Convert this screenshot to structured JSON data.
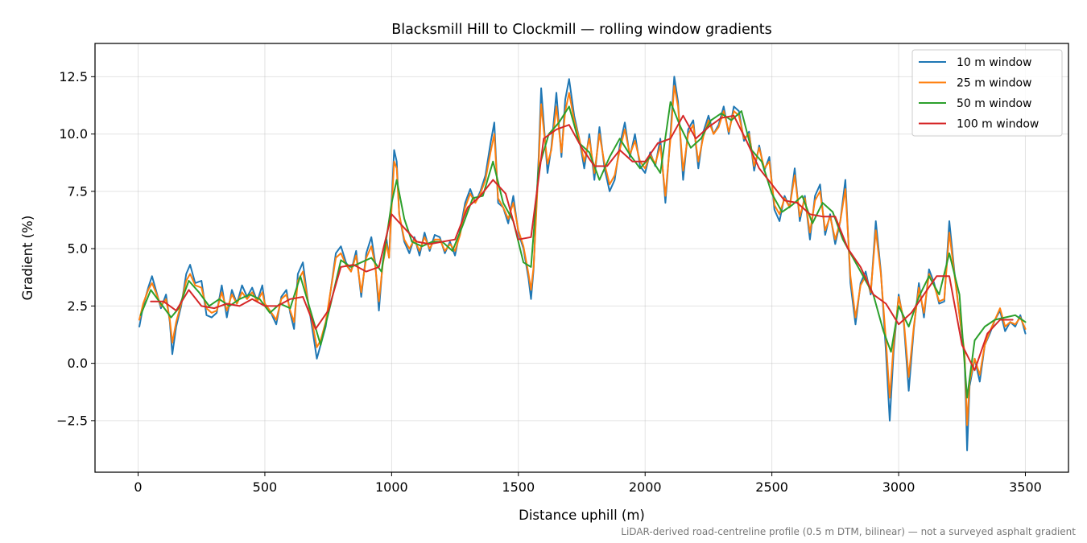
{
  "chart_data": {
    "type": "line",
    "title": "Blacksmill Hill to Clockmill — rolling window gradients",
    "xlabel": "Distance uphill (m)",
    "ylabel": "Gradient (%)",
    "footnote": "LiDAR-derived road-centreline profile (0.5 m DTM, bilinear) — not a surveyed asphalt gradient",
    "xlim": [
      -170,
      3670
    ],
    "ylim": [
      -4.75,
      13.95
    ],
    "xticks": [
      0,
      500,
      1000,
      1500,
      2000,
      2500,
      3000,
      3500
    ],
    "xtick_labels": [
      "0",
      "500",
      "1000",
      "1500",
      "2000",
      "2500",
      "3000",
      "3500"
    ],
    "yticks": [
      -2.5,
      0.0,
      2.5,
      5.0,
      7.5,
      10.0,
      12.5
    ],
    "ytick_labels": [
      "−2.5",
      "0.0",
      "2.5",
      "5.0",
      "7.5",
      "10.0",
      "12.5"
    ],
    "grid": true,
    "legend_position": "top-right",
    "series": [
      {
        "name": "10 m window",
        "color": "#1f77b4",
        "x": [
          5,
          20,
          40,
          55,
          70,
          90,
          110,
          125,
          135,
          150,
          170,
          190,
          205,
          225,
          250,
          270,
          290,
          310,
          330,
          350,
          370,
          390,
          410,
          430,
          450,
          470,
          490,
          500,
          520,
          545,
          565,
          585,
          600,
          615,
          630,
          650,
          670,
          690,
          705,
          720,
          740,
          760,
          780,
          800,
          820,
          840,
          860,
          880,
          900,
          920,
          935,
          950,
          965,
          980,
          990,
          1000,
          1010,
          1020,
          1030,
          1050,
          1070,
          1090,
          1110,
          1130,
          1150,
          1170,
          1190,
          1210,
          1230,
          1250,
          1270,
          1290,
          1310,
          1330,
          1350,
          1370,
          1390,
          1405,
          1420,
          1440,
          1460,
          1480,
          1500,
          1520,
          1540,
          1550,
          1560,
          1570,
          1580,
          1590,
          1600,
          1615,
          1630,
          1650,
          1670,
          1685,
          1700,
          1720,
          1740,
          1760,
          1780,
          1800,
          1820,
          1840,
          1860,
          1880,
          1900,
          1920,
          1940,
          1960,
          1980,
          2000,
          2020,
          2040,
          2060,
          2080,
          2100,
          2115,
          2130,
          2150,
          2170,
          2190,
          2210,
          2230,
          2250,
          2270,
          2290,
          2310,
          2330,
          2350,
          2370,
          2390,
          2410,
          2430,
          2450,
          2470,
          2490,
          2510,
          2530,
          2550,
          2570,
          2590,
          2610,
          2630,
          2650,
          2670,
          2690,
          2710,
          2730,
          2750,
          2770,
          2790,
          2810,
          2830,
          2850,
          2870,
          2890,
          2910,
          2930,
          2950,
          2965,
          2980,
          3000,
          3020,
          3040,
          3060,
          3080,
          3100,
          3120,
          3140,
          3160,
          3180,
          3200,
          3220,
          3240,
          3260,
          3270,
          3280,
          3300,
          3320,
          3340,
          3360,
          3380,
          3400,
          3420,
          3440,
          3460,
          3480,
          3500
        ],
        "y": [
          1.6,
          2.5,
          3.3,
          3.8,
          3.2,
          2.4,
          3.0,
          1.8,
          0.4,
          1.6,
          2.5,
          3.9,
          4.3,
          3.5,
          3.6,
          2.1,
          2.0,
          2.2,
          3.4,
          2.0,
          3.2,
          2.6,
          3.4,
          2.9,
          3.3,
          2.7,
          3.4,
          2.6,
          2.3,
          1.7,
          2.9,
          3.2,
          2.2,
          1.5,
          3.9,
          4.4,
          2.7,
          1.3,
          0.2,
          0.8,
          1.6,
          3.2,
          4.8,
          5.1,
          4.4,
          4.0,
          4.9,
          2.9,
          4.8,
          5.5,
          4.4,
          2.3,
          4.4,
          5.4,
          4.6,
          7.1,
          9.3,
          8.8,
          6.5,
          5.3,
          4.8,
          5.5,
          4.7,
          5.7,
          4.9,
          5.6,
          5.5,
          4.8,
          5.3,
          4.7,
          5.8,
          7.0,
          7.6,
          7.0,
          7.5,
          8.2,
          9.6,
          10.5,
          7.0,
          6.8,
          6.1,
          7.3,
          5.7,
          5.0,
          3.7,
          2.8,
          4.1,
          6.6,
          9.0,
          12.0,
          10.5,
          8.3,
          9.4,
          11.8,
          9.0,
          11.5,
          12.4,
          10.8,
          9.8,
          8.5,
          10.0,
          8.0,
          10.3,
          8.5,
          7.5,
          8.0,
          9.5,
          10.5,
          9.0,
          10.0,
          8.6,
          8.3,
          9.2,
          8.6,
          9.8,
          7.0,
          10.0,
          12.5,
          11.4,
          8.0,
          10.2,
          10.6,
          8.5,
          10.1,
          10.8,
          10.0,
          10.4,
          11.2,
          10.0,
          11.2,
          11.0,
          9.7,
          10.1,
          8.4,
          9.5,
          8.4,
          9.0,
          6.7,
          6.2,
          7.3,
          6.8,
          8.5,
          6.2,
          7.3,
          5.4,
          7.3,
          7.8,
          5.6,
          6.5,
          5.2,
          6.2,
          8.0,
          3.5,
          1.7,
          3.5,
          4.0,
          3.0,
          6.2,
          4.0,
          0.5,
          -2.5,
          0.5,
          3.0,
          1.8,
          -1.2,
          1.5,
          3.5,
          2.0,
          4.1,
          3.5,
          2.6,
          2.7,
          6.2,
          4.0,
          2.1,
          0.3,
          -3.8,
          -1.0,
          0.2,
          -0.8,
          0.8,
          1.3,
          1.9,
          2.3,
          1.4,
          1.8,
          1.6,
          2.1,
          1.3
        ]
      },
      {
        "name": "25 m window",
        "color": "#ff7f0e",
        "x": [
          5,
          20,
          40,
          55,
          70,
          90,
          110,
          125,
          135,
          150,
          170,
          190,
          205,
          225,
          250,
          270,
          290,
          310,
          330,
          350,
          370,
          390,
          410,
          430,
          450,
          470,
          490,
          500,
          520,
          545,
          565,
          585,
          600,
          615,
          630,
          650,
          670,
          690,
          705,
          720,
          740,
          760,
          780,
          800,
          820,
          840,
          860,
          880,
          900,
          920,
          935,
          950,
          965,
          980,
          990,
          1000,
          1010,
          1020,
          1030,
          1050,
          1070,
          1090,
          1110,
          1130,
          1150,
          1170,
          1190,
          1210,
          1230,
          1250,
          1270,
          1290,
          1310,
          1330,
          1350,
          1370,
          1390,
          1405,
          1420,
          1440,
          1460,
          1480,
          1500,
          1520,
          1540,
          1550,
          1560,
          1570,
          1580,
          1590,
          1600,
          1615,
          1630,
          1650,
          1670,
          1685,
          1700,
          1720,
          1740,
          1760,
          1780,
          1800,
          1820,
          1840,
          1860,
          1880,
          1900,
          1920,
          1940,
          1960,
          1980,
          2000,
          2020,
          2040,
          2060,
          2080,
          2100,
          2115,
          2130,
          2150,
          2170,
          2190,
          2210,
          2230,
          2250,
          2270,
          2290,
          2310,
          2330,
          2350,
          2370,
          2390,
          2410,
          2430,
          2450,
          2470,
          2490,
          2510,
          2530,
          2550,
          2570,
          2590,
          2610,
          2630,
          2650,
          2670,
          2690,
          2710,
          2730,
          2750,
          2770,
          2790,
          2810,
          2830,
          2850,
          2870,
          2890,
          2910,
          2930,
          2950,
          2965,
          2980,
          3000,
          3020,
          3040,
          3060,
          3080,
          3100,
          3120,
          3140,
          3160,
          3180,
          3200,
          3220,
          3240,
          3260,
          3270,
          3280,
          3300,
          3320,
          3340,
          3360,
          3380,
          3400,
          3420,
          3440,
          3460,
          3480,
          3500
        ],
        "y": [
          1.9,
          2.6,
          3.2,
          3.5,
          3.1,
          2.5,
          2.8,
          1.9,
          0.9,
          1.8,
          2.6,
          3.6,
          3.9,
          3.4,
          3.3,
          2.4,
          2.2,
          2.3,
          3.1,
          2.3,
          3.0,
          2.6,
          3.1,
          2.8,
          3.1,
          2.7,
          3.1,
          2.6,
          2.3,
          1.9,
          2.8,
          3.0,
          2.3,
          1.8,
          3.6,
          4.0,
          2.7,
          1.6,
          0.7,
          1.0,
          1.8,
          3.2,
          4.6,
          4.8,
          4.3,
          4.0,
          4.7,
          3.1,
          4.6,
          5.1,
          4.3,
          2.7,
          4.3,
          5.2,
          4.6,
          6.8,
          8.8,
          8.5,
          6.5,
          5.4,
          5.0,
          5.4,
          4.9,
          5.5,
          5.0,
          5.4,
          5.4,
          4.9,
          5.2,
          4.9,
          5.6,
          6.8,
          7.4,
          7.0,
          7.4,
          8.0,
          9.2,
          10.0,
          7.2,
          6.8,
          6.3,
          7.0,
          5.8,
          5.1,
          3.9,
          3.2,
          4.2,
          6.4,
          8.7,
          11.3,
          10.2,
          8.7,
          9.3,
          11.2,
          9.2,
          11.0,
          11.8,
          10.6,
          9.8,
          8.8,
          9.8,
          8.3,
          10.0,
          8.7,
          7.8,
          8.2,
          9.3,
          10.2,
          9.1,
          9.7,
          8.8,
          8.5,
          9.1,
          8.7,
          9.5,
          7.3,
          9.8,
          12.1,
          11.2,
          8.4,
          10.0,
          10.4,
          8.8,
          9.9,
          10.6,
          10.0,
          10.3,
          11.0,
          10.1,
          11.0,
          10.8,
          9.8,
          10.0,
          8.6,
          9.4,
          8.5,
          8.8,
          6.9,
          6.5,
          7.2,
          6.8,
          8.2,
          6.4,
          7.2,
          5.7,
          7.1,
          7.5,
          5.8,
          6.4,
          5.4,
          6.2,
          7.6,
          3.8,
          2.0,
          3.4,
          3.8,
          3.1,
          5.8,
          3.9,
          1.0,
          -1.5,
          0.8,
          2.9,
          1.9,
          -0.6,
          1.6,
          3.3,
          2.2,
          3.9,
          3.4,
          2.7,
          2.8,
          5.7,
          3.9,
          2.1,
          0.5,
          -2.7,
          -0.8,
          0.2,
          -0.5,
          0.8,
          1.4,
          1.9,
          2.4,
          1.6,
          1.8,
          1.7,
          2.0,
          1.5
        ]
      },
      {
        "name": "50 m window",
        "color": "#2ca02c",
        "x": [
          10,
          50,
          90,
          130,
          160,
          200,
          240,
          280,
          320,
          360,
          400,
          440,
          480,
          520,
          560,
          600,
          640,
          680,
          720,
          760,
          800,
          840,
          880,
          920,
          960,
          1000,
          1020,
          1050,
          1080,
          1120,
          1160,
          1200,
          1240,
          1280,
          1320,
          1360,
          1400,
          1440,
          1480,
          1520,
          1550,
          1580,
          1620,
          1660,
          1700,
          1740,
          1780,
          1820,
          1860,
          1900,
          1940,
          1980,
          2020,
          2060,
          2100,
          2140,
          2180,
          2220,
          2260,
          2300,
          2340,
          2380,
          2420,
          2460,
          2500,
          2540,
          2580,
          2620,
          2660,
          2700,
          2740,
          2780,
          2820,
          2860,
          2900,
          2940,
          2970,
          3000,
          3040,
          3080,
          3120,
          3160,
          3200,
          3240,
          3270,
          3300,
          3340,
          3380,
          3420,
          3460,
          3500
        ],
        "y": [
          2.1,
          3.2,
          2.6,
          2.0,
          2.4,
          3.6,
          3.1,
          2.5,
          2.8,
          2.5,
          2.8,
          3.0,
          2.8,
          2.2,
          2.6,
          2.4,
          3.8,
          2.3,
          0.8,
          2.6,
          4.5,
          4.2,
          4.4,
          4.6,
          4.0,
          7.0,
          8.0,
          6.3,
          5.3,
          5.1,
          5.3,
          5.3,
          4.9,
          6.0,
          7.2,
          7.3,
          8.8,
          7.0,
          6.2,
          4.4,
          4.2,
          8.5,
          10.0,
          10.5,
          11.2,
          9.6,
          9.2,
          8.0,
          9.0,
          9.8,
          9.1,
          8.5,
          9.0,
          8.3,
          11.4,
          10.3,
          9.4,
          9.8,
          10.6,
          10.9,
          10.6,
          11.0,
          9.3,
          8.8,
          7.4,
          6.6,
          6.9,
          7.3,
          6.1,
          7.0,
          6.6,
          5.4,
          4.6,
          3.8,
          3.0,
          1.4,
          0.5,
          2.5,
          1.6,
          2.9,
          3.8,
          3.0,
          4.8,
          3.0,
          -1.5,
          1.0,
          1.6,
          1.9,
          2.0,
          2.1,
          1.8
        ]
      },
      {
        "name": "100 m window",
        "color": "#d62728",
        "x": [
          50,
          100,
          150,
          200,
          250,
          300,
          350,
          400,
          450,
          500,
          550,
          600,
          650,
          700,
          750,
          800,
          850,
          900,
          950,
          1000,
          1050,
          1100,
          1150,
          1200,
          1250,
          1300,
          1350,
          1400,
          1450,
          1500,
          1550,
          1600,
          1650,
          1700,
          1750,
          1800,
          1850,
          1900,
          1950,
          2000,
          2050,
          2100,
          2150,
          2200,
          2250,
          2300,
          2350,
          2400,
          2450,
          2500,
          2550,
          2600,
          2650,
          2700,
          2750,
          2800,
          2850,
          2900,
          2950,
          3000,
          3050,
          3100,
          3150,
          3200,
          3250,
          3300,
          3350,
          3400,
          3450
        ],
        "y": [
          2.7,
          2.7,
          2.3,
          3.2,
          2.5,
          2.4,
          2.6,
          2.5,
          2.8,
          2.5,
          2.5,
          2.8,
          2.9,
          1.5,
          2.3,
          4.2,
          4.3,
          4.0,
          4.2,
          6.5,
          5.9,
          5.3,
          5.2,
          5.3,
          5.4,
          6.8,
          7.3,
          8.0,
          7.4,
          5.4,
          5.5,
          9.8,
          10.2,
          10.4,
          9.4,
          8.6,
          8.6,
          9.3,
          8.8,
          8.8,
          9.6,
          9.8,
          10.8,
          9.8,
          10.3,
          10.7,
          10.8,
          9.7,
          8.5,
          7.8,
          7.1,
          7.0,
          6.5,
          6.4,
          6.4,
          5.0,
          4.2,
          3.0,
          2.6,
          1.7,
          2.2,
          3.0,
          3.8,
          3.8,
          0.8,
          -0.3,
          1.3,
          1.9,
          1.9
        ]
      }
    ]
  }
}
